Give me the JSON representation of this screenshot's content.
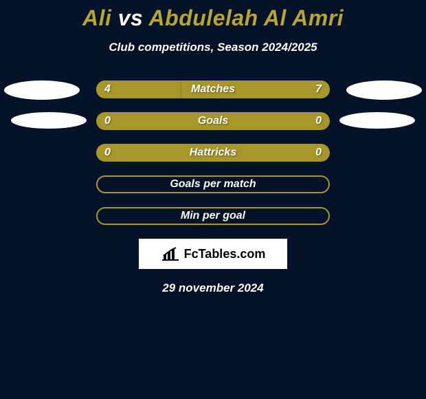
{
  "background_color": "#05132a",
  "title": {
    "p1_name": "Ali",
    "vs_word": "vs",
    "p2_name": "Abdulelah Al Amri",
    "p1_color": "#b9a72c",
    "vs_color": "#ffffff",
    "p2_color": "#b9a72c",
    "fontsize": 32
  },
  "subtitle": {
    "text": "Club competitions, Season 2024/2025",
    "color": "#ffffff",
    "fontsize": 17
  },
  "bar_style": {
    "track_width": 340,
    "track_height": 26,
    "border_radius": 13,
    "left_fill": "#a7972a",
    "right_fill": "#a7962a",
    "border_only_fill": "#05132a",
    "border_only_stroke": "#a7972a",
    "border_only_stroke_width": 2,
    "label_color": "#ffffff",
    "label_fontsize": 16
  },
  "rows": [
    {
      "metric": "Matches",
      "left_value": "4",
      "right_value": "7",
      "left_ratio": 0.364,
      "right_ratio": 0.636,
      "mode": "split",
      "side_ellipses": "big"
    },
    {
      "metric": "Goals",
      "left_value": "0",
      "right_value": "0",
      "left_ratio": 0.5,
      "right_ratio": 0.5,
      "mode": "filled_solid",
      "side_ellipses": "small"
    },
    {
      "metric": "Hattricks",
      "left_value": "0",
      "right_value": "0",
      "left_ratio": 0.5,
      "right_ratio": 0.5,
      "mode": "filled_solid",
      "side_ellipses": "none"
    },
    {
      "metric": "Goals per match",
      "left_value": "",
      "right_value": "",
      "left_ratio": 0,
      "right_ratio": 0,
      "mode": "outline",
      "side_ellipses": "none"
    },
    {
      "metric": "Min per goal",
      "left_value": "",
      "right_value": "",
      "left_ratio": 0,
      "right_ratio": 0,
      "mode": "outline",
      "side_ellipses": "none"
    }
  ],
  "brand": {
    "text": "FcTables.com",
    "icon_color": "#000000"
  },
  "date": {
    "text": "29 november 2024",
    "color": "#ffffff",
    "fontsize": 17
  },
  "ellipse_color": "#ffffff"
}
